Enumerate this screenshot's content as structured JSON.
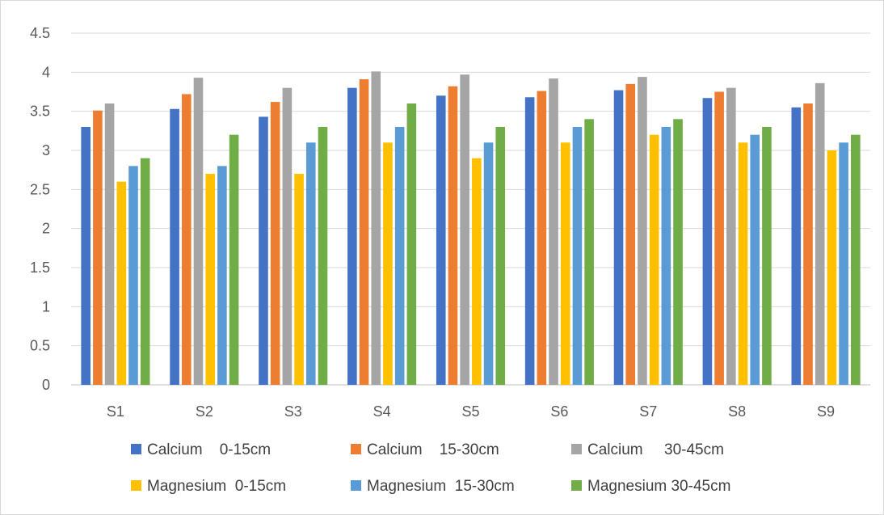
{
  "chart_data": {
    "type": "bar",
    "categories": [
      "S1",
      "S2",
      "S3",
      "S4",
      "S5",
      "S6",
      "S7",
      "S8",
      "S9"
    ],
    "ylim": [
      0,
      4.5
    ],
    "yticks": [
      "0",
      "0.5",
      "1",
      "1.5",
      "2",
      "2.5",
      "3",
      "3.5",
      "4",
      "4.5"
    ],
    "grid": true,
    "legend_position": "bottom",
    "series": [
      {
        "name": "Calcium    0-15cm",
        "color": "#4472C4",
        "values": [
          3.3,
          3.53,
          3.43,
          3.8,
          3.7,
          3.68,
          3.77,
          3.67,
          3.55
        ]
      },
      {
        "name": "Calcium    15-30cm",
        "color": "#ED7D31",
        "values": [
          3.51,
          3.72,
          3.62,
          3.91,
          3.82,
          3.76,
          3.85,
          3.75,
          3.6
        ]
      },
      {
        "name": "Calcium     30-45cm",
        "color": "#A5A5A5",
        "values": [
          3.6,
          3.93,
          3.8,
          4.01,
          3.97,
          3.92,
          3.94,
          3.8,
          3.86
        ]
      },
      {
        "name": "Magnesium  0-15cm",
        "color": "#FFC000",
        "values": [
          2.6,
          2.7,
          2.7,
          3.1,
          2.9,
          3.1,
          3.2,
          3.1,
          3.0
        ]
      },
      {
        "name": "Magnesium  15-30cm",
        "color": "#5B9BD5",
        "values": [
          2.8,
          2.8,
          3.1,
          3.3,
          3.1,
          3.3,
          3.3,
          3.2,
          3.1
        ]
      },
      {
        "name": "Magnesium 30-45cm",
        "color": "#70AD47",
        "values": [
          2.9,
          3.2,
          3.3,
          3.6,
          3.3,
          3.4,
          3.4,
          3.3,
          3.2
        ]
      }
    ]
  }
}
